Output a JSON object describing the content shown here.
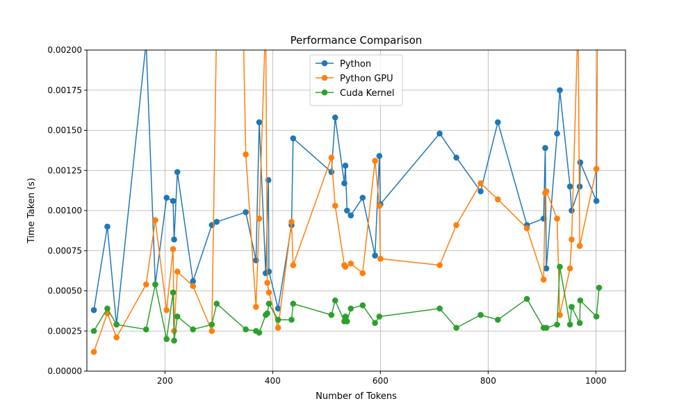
{
  "chart_data": {
    "type": "line",
    "title": "Performance Comparison",
    "xlabel": "Number of Tokens",
    "ylabel": "Time Taken (s)",
    "xlim": [
      55,
      1055
    ],
    "ylim": [
      0,
      0.002
    ],
    "x_ticks": [
      200,
      400,
      600,
      800,
      1000
    ],
    "x_tick_labels": [
      "200",
      "400",
      "600",
      "800",
      "1000"
    ],
    "y_ticks": [
      0,
      0.00025,
      0.0005,
      0.00075,
      0.001,
      0.00125,
      0.0015,
      0.00175,
      0.002
    ],
    "y_tick_labels": [
      "0.00000",
      "0.00025",
      "0.00050",
      "0.00075",
      "0.00100",
      "0.00125",
      "0.00150",
      "0.00175",
      "0.00200"
    ],
    "grid": true,
    "legend_position": "upper-center",
    "series": [
      {
        "name": "Python",
        "color": "#1f77b4",
        "points": [
          [
            68,
            0.00038
          ],
          [
            93,
            0.0009
          ],
          [
            110,
            0.00029
          ],
          [
            165,
            0.00205
          ],
          [
            182,
            0.00054
          ],
          [
            203,
            0.00108
          ],
          [
            215,
            0.00106
          ],
          [
            217,
            0.00082
          ],
          [
            223,
            0.00124
          ],
          [
            252,
            0.00056
          ],
          [
            287,
            0.00091
          ],
          [
            296,
            0.00093
          ],
          [
            350,
            0.00099
          ],
          [
            369,
            0.00069
          ],
          [
            375,
            0.00155
          ],
          [
            387,
            0.00061
          ],
          [
            392,
            0.00119
          ],
          [
            393,
            0.00062
          ],
          [
            410,
            0.00039
          ],
          [
            435,
            0.00091
          ],
          [
            438,
            0.00145
          ],
          [
            509,
            0.00124
          ],
          [
            516,
            0.00158
          ],
          [
            533,
            0.00117
          ],
          [
            535,
            0.00128
          ],
          [
            538,
            0.001
          ],
          [
            545,
            0.00097
          ],
          [
            567,
            0.00108
          ],
          [
            590,
            0.00072
          ],
          [
            598,
            0.00134
          ],
          [
            600,
            0.00104
          ],
          [
            710,
            0.00148
          ],
          [
            741,
            0.00133
          ],
          [
            786,
            0.00112
          ],
          [
            818,
            0.00155
          ],
          [
            872,
            0.00091
          ],
          [
            903,
            0.00095
          ],
          [
            906,
            0.00139
          ],
          [
            908,
            0.00064
          ],
          [
            928,
            0.00148
          ],
          [
            933,
            0.00175
          ],
          [
            952,
            0.00115
          ],
          [
            955,
            0.001
          ],
          [
            970,
            0.00115
          ],
          [
            971,
            0.0013
          ],
          [
            1001,
            0.00106
          ],
          [
            1003,
            0.0022
          ]
        ]
      },
      {
        "name": "Python GPU",
        "color": "#ff7f0e",
        "points": [
          [
            68,
            0.00012
          ],
          [
            93,
            0.00036
          ],
          [
            110,
            0.00021
          ],
          [
            165,
            0.00054
          ],
          [
            182,
            0.00094
          ],
          [
            203,
            0.00038
          ],
          [
            215,
            0.00076
          ],
          [
            217,
            0.00025
          ],
          [
            223,
            0.00062
          ],
          [
            252,
            0.00053
          ],
          [
            287,
            0.00025
          ],
          [
            296,
            0.0022
          ],
          [
            345,
            0.0022
          ],
          [
            350,
            0.00135
          ],
          [
            369,
            0.0004
          ],
          [
            375,
            0.00095
          ],
          [
            387,
            0.0022
          ],
          [
            390,
            0.00055
          ],
          [
            393,
            0.00049
          ],
          [
            410,
            0.00027
          ],
          [
            435,
            0.00093
          ],
          [
            438,
            0.00066
          ],
          [
            509,
            0.00133
          ],
          [
            516,
            0.00103
          ],
          [
            533,
            0.00066
          ],
          [
            535,
            0.00065
          ],
          [
            545,
            0.00067
          ],
          [
            567,
            0.00061
          ],
          [
            590,
            0.00131
          ],
          [
            598,
            0.00103
          ],
          [
            600,
            0.0007
          ],
          [
            710,
            0.00066
          ],
          [
            741,
            0.00091
          ],
          [
            786,
            0.00117
          ],
          [
            818,
            0.00107
          ],
          [
            872,
            0.00089
          ],
          [
            903,
            0.00057
          ],
          [
            906,
            0.00111
          ],
          [
            908,
            0.00112
          ],
          [
            928,
            0.00095
          ],
          [
            933,
            0.00035
          ],
          [
            952,
            0.00064
          ],
          [
            955,
            0.00082
          ],
          [
            967,
            0.0022
          ],
          [
            970,
            0.00078
          ],
          [
            1001,
            0.00126
          ],
          [
            1003,
            0.0022
          ]
        ]
      },
      {
        "name": "Cuda Kernel",
        "color": "#2ca02c",
        "points": [
          [
            68,
            0.00025
          ],
          [
            93,
            0.00039
          ],
          [
            110,
            0.00029
          ],
          [
            165,
            0.00026
          ],
          [
            182,
            0.00054
          ],
          [
            203,
            0.0002
          ],
          [
            215,
            0.00049
          ],
          [
            217,
            0.00019
          ],
          [
            223,
            0.00034
          ],
          [
            252,
            0.00026
          ],
          [
            287,
            0.00029
          ],
          [
            296,
            0.00042
          ],
          [
            350,
            0.00026
          ],
          [
            369,
            0.00025
          ],
          [
            375,
            0.00024
          ],
          [
            387,
            0.00035
          ],
          [
            390,
            0.00036
          ],
          [
            393,
            0.00042
          ],
          [
            410,
            0.00032
          ],
          [
            435,
            0.00032
          ],
          [
            438,
            0.00042
          ],
          [
            509,
            0.00035
          ],
          [
            516,
            0.00044
          ],
          [
            533,
            0.00031
          ],
          [
            535,
            0.00034
          ],
          [
            538,
            0.00031
          ],
          [
            545,
            0.00039
          ],
          [
            567,
            0.00041
          ],
          [
            590,
            0.0003
          ],
          [
            598,
            0.00034
          ],
          [
            710,
            0.00039
          ],
          [
            741,
            0.00027
          ],
          [
            786,
            0.00035
          ],
          [
            818,
            0.00032
          ],
          [
            872,
            0.00045
          ],
          [
            903,
            0.00027
          ],
          [
            908,
            0.00027
          ],
          [
            928,
            0.00029
          ],
          [
            933,
            0.00065
          ],
          [
            952,
            0.00029
          ],
          [
            955,
            0.0004
          ],
          [
            970,
            0.0003
          ],
          [
            971,
            0.00044
          ],
          [
            1001,
            0.00034
          ],
          [
            1006,
            0.00052
          ]
        ]
      }
    ]
  }
}
